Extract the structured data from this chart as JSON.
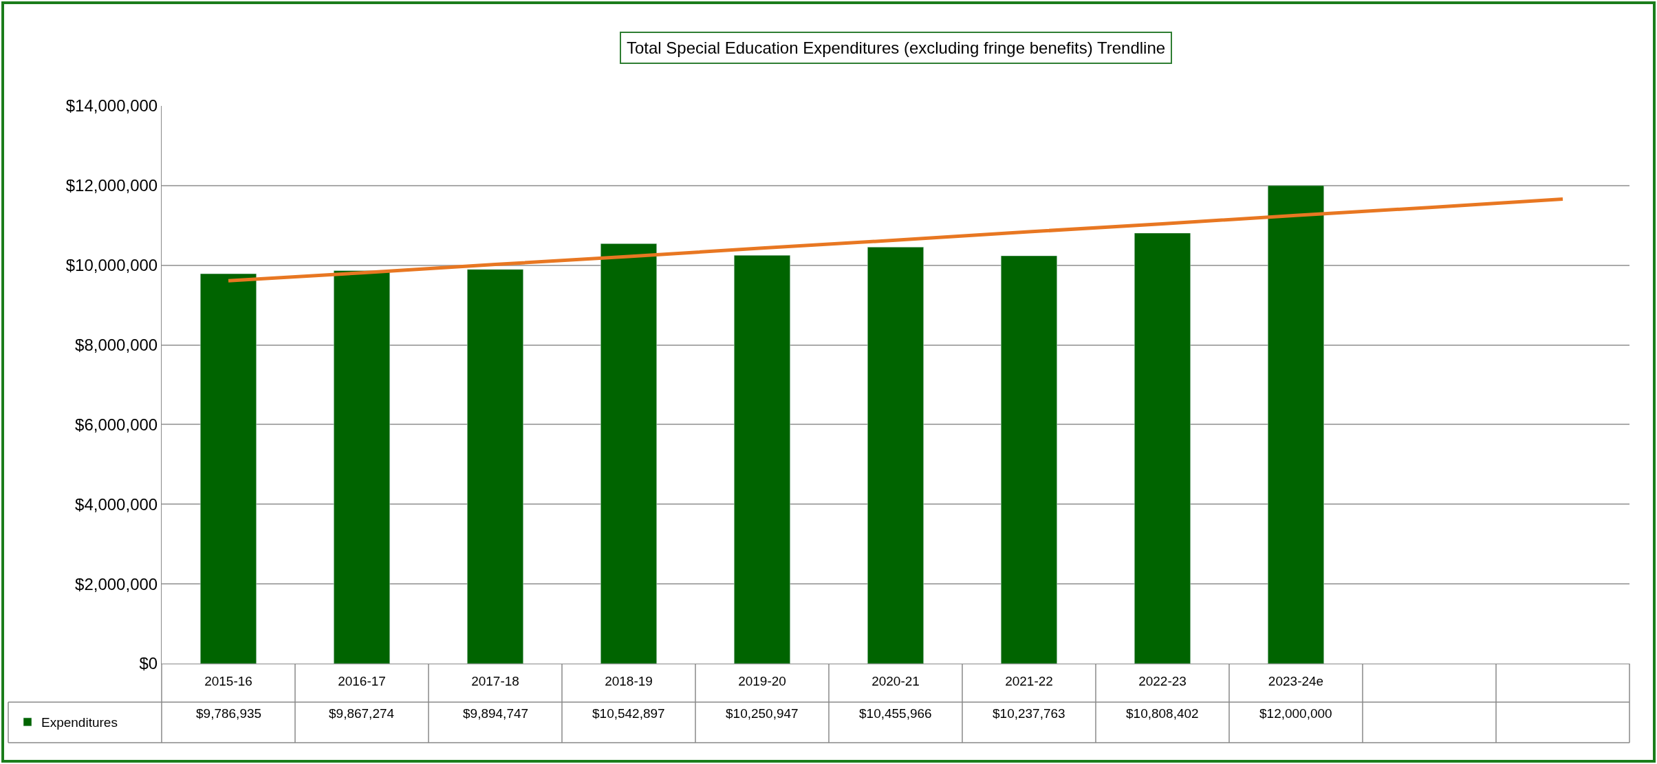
{
  "chart_data": {
    "type": "bar",
    "title": "Total Special Education Expenditures (excluding fringe benefits) Trendline",
    "categories": [
      "2015-16",
      "2016-17",
      "2017-18",
      "2018-19",
      "2019-20",
      "2020-21",
      "2021-22",
      "2022-23",
      "2023-24e",
      null,
      null
    ],
    "series": [
      {
        "name": "Expenditures",
        "color": "#006400",
        "values": [
          9786935,
          9867274,
          9894747,
          10542897,
          10250947,
          10455966,
          10237763,
          10808402,
          12000000,
          null,
          null
        ],
        "value_labels": [
          "$9,786,935",
          "$9,867,274",
          "$9,894,747",
          "$10,542,897",
          "$10,250,947",
          "$10,455,966",
          "$10,237,763",
          "$10,808,402",
          "$12,000,000",
          null,
          null
        ]
      },
      {
        "type": "line",
        "color": "#e87722",
        "values": [
          9610000,
          9810000,
          10020000,
          10220000,
          10430000,
          10630000,
          10840000,
          11040000,
          11250000,
          11450000,
          11660000
        ]
      }
    ],
    "ylim": [
      0,
      14000000
    ],
    "yticks": [
      {
        "value": 0,
        "label": "$0"
      },
      {
        "value": 2000000,
        "label": "$2,000,000"
      },
      {
        "value": 4000000,
        "label": "$4,000,000"
      },
      {
        "value": 6000000,
        "label": "$6,000,000"
      },
      {
        "value": 8000000,
        "label": "$8,000,000"
      },
      {
        "value": 10000000,
        "label": "$10,000,000"
      },
      {
        "value": 12000000,
        "label": "$12,000,000"
      },
      {
        "value": 14000000,
        "label": "$14,000,000"
      }
    ],
    "grid": "y",
    "legend": "bottom left",
    "marker": "none",
    "line_style": "solid"
  }
}
